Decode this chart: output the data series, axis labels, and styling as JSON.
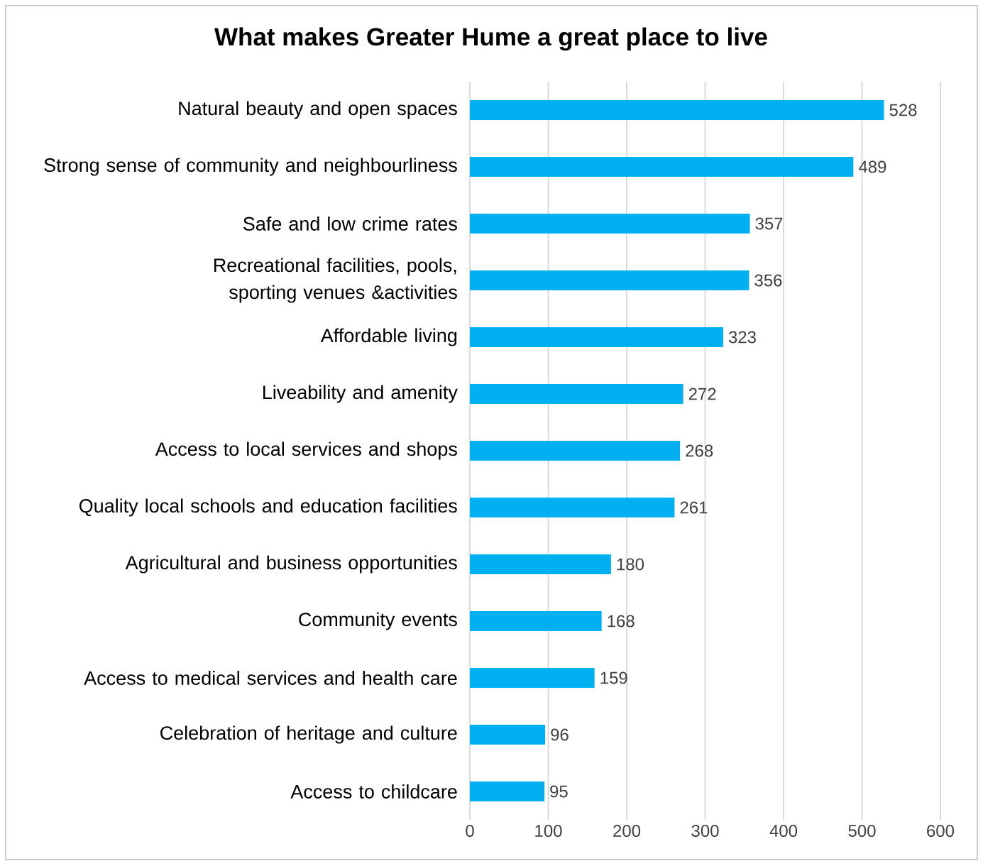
{
  "chart_data": {
    "type": "bar",
    "orientation": "horizontal",
    "title": "What makes Greater Hume a great place to live",
    "categories": [
      "Natural beauty and open spaces",
      "Strong sense of community and neighbourliness",
      "Safe and low crime rates",
      "Recreational facilities, pools, sporting venues &activities",
      "Affordable living",
      "Liveability and amenity",
      "Access to local services and shops",
      "Quality local schools and education facilities",
      "Agricultural and business opportunities",
      "Community events",
      "Access to medical services and health care",
      "Celebration of heritage and culture",
      "Access to childcare"
    ],
    "values": [
      528,
      489,
      357,
      356,
      323,
      272,
      268,
      261,
      180,
      168,
      159,
      96,
      95
    ],
    "color": "#00b0f0",
    "xlim": [
      0,
      600
    ],
    "xticks": [
      0,
      100,
      200,
      300,
      400,
      500,
      600
    ],
    "grid": "x",
    "data_labels": true
  }
}
